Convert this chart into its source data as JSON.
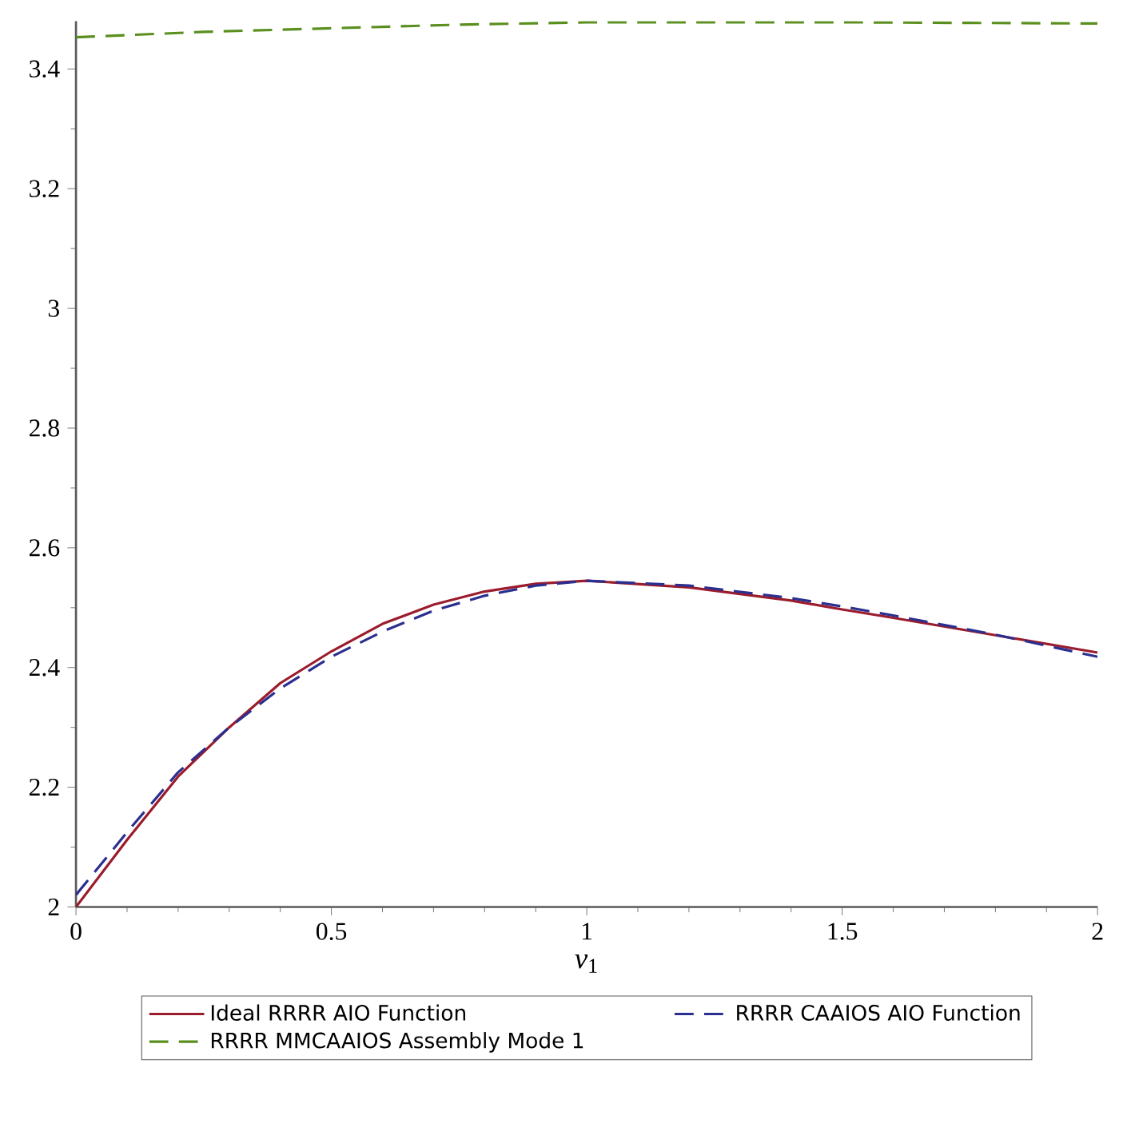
{
  "chart_data": {
    "type": "line",
    "xlabel": "*v*$_{1}$",
    "xlim": [
      0,
      2
    ],
    "ylim": [
      2,
      3.48
    ],
    "xticks": [
      0,
      0.5,
      1,
      1.5,
      2
    ],
    "yticks": [
      2,
      2.2,
      2.4,
      2.6,
      2.8,
      3,
      3.2,
      3.4
    ],
    "legend": "bottom",
    "grid": false,
    "series": [
      {
        "name": "Ideal RRRR AIO Function",
        "color": "#9b1c2c",
        "line_style": "solid",
        "x": [
          0,
          0.1,
          0.2,
          0.3,
          0.4,
          0.5,
          0.6,
          0.7,
          0.8,
          0.9,
          1.0,
          1.2,
          1.4,
          1.5,
          1.6,
          1.8,
          2.0
        ],
        "values": [
          2.0,
          2.112,
          2.218,
          2.3,
          2.374,
          2.427,
          2.473,
          2.505,
          2.527,
          2.54,
          2.545,
          2.534,
          2.512,
          2.497,
          2.483,
          2.454,
          2.425
        ]
      },
      {
        "name": "RRRR CAAIOS AIO Function",
        "color": "#2b2f8f",
        "line_style": "dashed",
        "x": [
          0,
          0.1,
          0.2,
          0.3,
          0.4,
          0.5,
          0.6,
          0.7,
          0.8,
          0.9,
          1.0,
          1.2,
          1.4,
          1.5,
          1.6,
          1.8,
          2.0
        ],
        "values": [
          2.02,
          2.125,
          2.225,
          2.3,
          2.365,
          2.418,
          2.46,
          2.495,
          2.52,
          2.537,
          2.545,
          2.537,
          2.516,
          2.502,
          2.487,
          2.455,
          2.418
        ]
      },
      {
        "name": "RRRR MMCAAIOS Assembly Mode 1",
        "color": "#5a8f1e",
        "line_style": "dashed",
        "x": [
          0,
          0.25,
          0.5,
          0.75,
          1.0,
          1.25,
          1.5,
          1.75,
          2.0
        ],
        "values": [
          3.453,
          3.462,
          3.468,
          3.474,
          3.478,
          3.478,
          3.478,
          3.477,
          3.476
        ]
      }
    ]
  }
}
